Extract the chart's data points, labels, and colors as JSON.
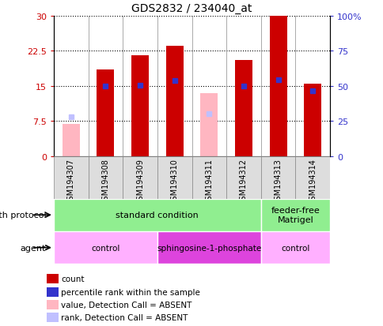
{
  "title": "GDS2832 / 234040_at",
  "samples": [
    "GSM194307",
    "GSM194308",
    "GSM194309",
    "GSM194310",
    "GSM194311",
    "GSM194312",
    "GSM194313",
    "GSM194314"
  ],
  "count_values": [
    null,
    18.5,
    21.5,
    23.5,
    null,
    20.5,
    30.0,
    15.5
  ],
  "rank_values": [
    null,
    50.0,
    50.5,
    54.0,
    null,
    50.0,
    54.5,
    46.5
  ],
  "absent_value_values": [
    6.8,
    null,
    null,
    null,
    13.5,
    null,
    null,
    null
  ],
  "absent_rank_values": [
    28.0,
    null,
    null,
    null,
    30.0,
    null,
    null,
    null
  ],
  "ylim_left": [
    0,
    30
  ],
  "ylim_right": [
    0,
    100
  ],
  "yticks_left": [
    0,
    7.5,
    15.0,
    22.5,
    30
  ],
  "ytick_labels_left": [
    "0",
    "7.5",
    "15",
    "22.5",
    "30"
  ],
  "yticks_right": [
    0,
    25,
    50,
    75,
    100
  ],
  "ytick_labels_right": [
    "0",
    "25",
    "50",
    "75",
    "100%"
  ],
  "color_count": "#CC0000",
  "color_rank": "#3333CC",
  "color_absent_value": "#FFB6C1",
  "color_absent_rank": "#C0C0FF",
  "bar_width": 0.5,
  "rank_marker_size": 5,
  "legend_items": [
    {
      "color": "#CC0000",
      "label": "count"
    },
    {
      "color": "#3333CC",
      "label": "percentile rank within the sample"
    },
    {
      "color": "#FFB6C1",
      "label": "value, Detection Call = ABSENT"
    },
    {
      "color": "#C0C0FF",
      "label": "rank, Detection Call = ABSENT"
    }
  ],
  "growth_protocol_label": "growth protocol",
  "agent_label": "agent",
  "gp_groups": [
    {
      "label": "standard condition",
      "start": 0,
      "end": 6,
      "color": "#90EE90"
    },
    {
      "label": "feeder-free\nMatrigel",
      "start": 6,
      "end": 8,
      "color": "#90EE90"
    }
  ],
  "agent_groups": [
    {
      "label": "control",
      "start": 0,
      "end": 3,
      "color": "#FFB0FF"
    },
    {
      "label": "sphingosine-1-phosphate",
      "start": 3,
      "end": 6,
      "color": "#DD44DD"
    },
    {
      "label": "control",
      "start": 6,
      "end": 8,
      "color": "#FFB0FF"
    }
  ],
  "sample_bg_color": "#DDDDDD",
  "border_color": "#888888"
}
